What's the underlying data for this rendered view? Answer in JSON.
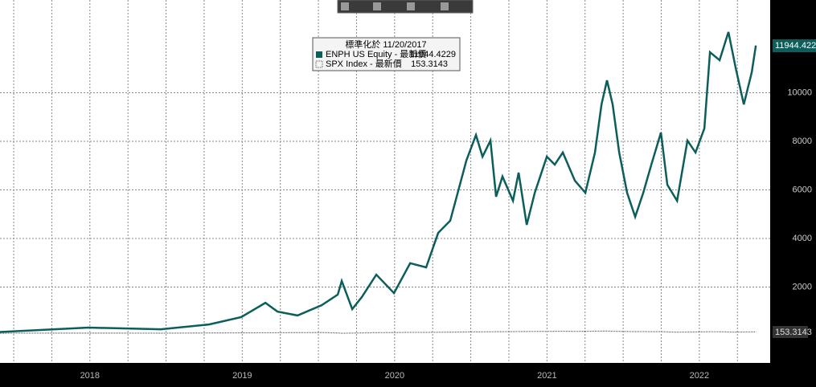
{
  "chart_data": {
    "type": "line",
    "tooltip_title": "標準化於 11/20/2017",
    "x": [
      2017.91,
      2018.227,
      2018.491,
      2018.966,
      2019.282,
      2019.493,
      2019.652,
      2019.731,
      2019.863,
      2020.021,
      2020.127,
      2020.153,
      2020.222,
      2020.285,
      2020.38,
      2020.496,
      2020.602,
      2020.707,
      2020.786,
      2020.865,
      2020.971,
      2021.034,
      2021.077,
      2021.129,
      2021.166,
      2021.208,
      2021.277,
      2021.314,
      2021.367,
      2021.42,
      2021.499,
      2021.551,
      2021.604,
      2021.683,
      2021.752,
      2021.815,
      2021.858,
      2021.894,
      2021.931,
      2021.974,
      2022.026,
      2022.079,
      2022.132,
      2022.185,
      2022.248,
      2022.29,
      2022.354,
      2022.422,
      2022.475,
      2022.533,
      2022.57,
      2022.633,
      2022.691,
      2022.739,
      2022.792,
      2022.844,
      2022.871
    ],
    "series": [
      {
        "name": "ENPH US Equity - 最新價",
        "color": "#0b5e5a",
        "values": [
          150,
          250,
          330,
          260,
          460,
          760,
          1350,
          990,
          830,
          1250,
          1690,
          2250,
          1090,
          1590,
          2510,
          1750,
          2980,
          2810,
          4230,
          4730,
          7210,
          8260,
          7370,
          8030,
          5720,
          6550,
          5550,
          6710,
          4560,
          5880,
          7370,
          7040,
          7540,
          6380,
          5880,
          7540,
          9520,
          10510,
          9520,
          7540,
          5880,
          4890,
          5880,
          7040,
          8360,
          6210,
          5550,
          8030,
          7540,
          8530,
          11670,
          11340,
          12500,
          11010,
          9520,
          10840,
          11944.4229
        ]
      },
      {
        "name": "SPX Index - 最新價",
        "color": "#555555",
        "values": [
          100,
          102,
          104,
          100,
          110,
          115,
          118,
          117,
          120,
          125,
          110,
          95,
          105,
          112,
          120,
          125,
          135,
          133,
          140,
          145,
          150,
          152,
          155,
          158,
          160,
          162,
          165,
          168,
          170,
          172,
          175,
          178,
          180,
          175,
          178,
          182,
          185,
          185,
          180,
          175,
          170,
          165,
          168,
          160,
          165,
          150,
          145,
          148,
          150,
          155,
          160,
          158,
          150,
          145,
          150,
          152,
          153.3143
        ]
      }
    ],
    "ylim": [
      -1124,
      13818
    ],
    "yticks": [
      2000,
      4000,
      6000,
      8000,
      10000
    ],
    "xlim": [
      2017.91,
      2022.965
    ],
    "xticks": [
      {
        "value": 2018.5,
        "label": "2018"
      },
      {
        "value": 2019.5,
        "label": "2019"
      },
      {
        "value": 2020.5,
        "label": "2020"
      },
      {
        "value": 2021.5,
        "label": "2021"
      },
      {
        "value": 2022.5,
        "label": "2022"
      }
    ],
    "xgrid": [
      2018,
      2018.25,
      2018.5,
      2018.75,
      2019,
      2019.25,
      2019.5,
      2019.75,
      2020,
      2020.25,
      2020.5,
      2020.75,
      2021,
      2021.25,
      2021.5,
      2021.75,
      2022,
      2022.25,
      2022.5,
      2022.75
    ],
    "grid": true
  }
}
